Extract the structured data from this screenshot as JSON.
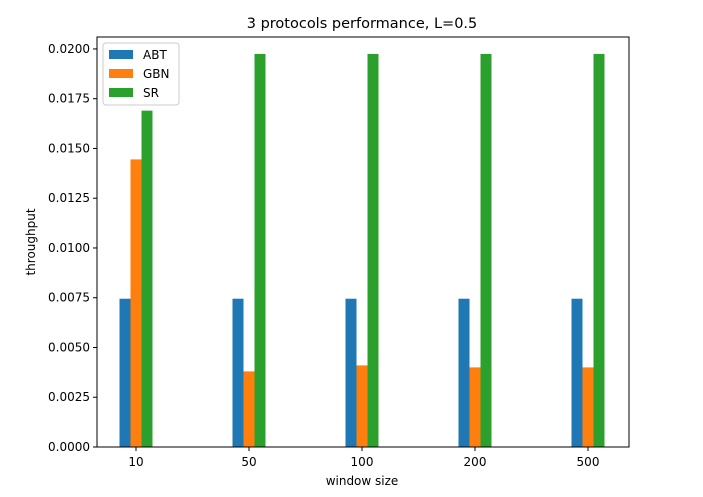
{
  "chart_data": {
    "type": "bar",
    "title": "3 protocols performance, L=0.5",
    "xlabel": "window size",
    "ylabel": "throughput",
    "categories": [
      "10",
      "50",
      "100",
      "200",
      "500"
    ],
    "series": [
      {
        "name": "ABT",
        "color": "#1f77b4",
        "values": [
          0.00745,
          0.00745,
          0.00745,
          0.00745,
          0.00745
        ]
      },
      {
        "name": "GBN",
        "color": "#ff7f0e",
        "values": [
          0.01445,
          0.0038,
          0.0041,
          0.004,
          0.004
        ]
      },
      {
        "name": "SR",
        "color": "#2ca02c",
        "values": [
          0.0169,
          0.01975,
          0.01975,
          0.01975,
          0.01975
        ]
      }
    ],
    "ylim": [
      0,
      0.0206
    ],
    "yticks": [
      "0.0000",
      "0.0025",
      "0.0050",
      "0.0075",
      "0.0100",
      "0.0125",
      "0.0150",
      "0.0175",
      "0.0200"
    ],
    "ytick_values": [
      0,
      0.0025,
      0.005,
      0.0075,
      0.01,
      0.0125,
      0.015,
      0.0175,
      0.02
    ],
    "grid": false,
    "legend_position": "top-left"
  }
}
